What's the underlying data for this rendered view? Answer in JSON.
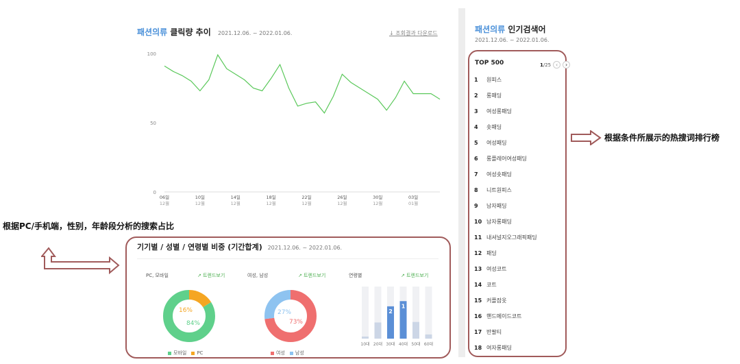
{
  "line_panel": {
    "title_highlight": "패션의류",
    "title_rest": "클릭량 추이",
    "date_range": "2021.12.06. ~ 2022.01.06.",
    "download_label": "↓ 조회결과 다운로드",
    "line_color": "#5ac85a"
  },
  "chart_data": {
    "type": "line",
    "ylim": [
      0,
      100
    ],
    "yticks": [
      "100",
      "50",
      "0"
    ],
    "xticks": [
      {
        "day": "06일",
        "month": "12월"
      },
      {
        "day": "10일",
        "month": "12월"
      },
      {
        "day": "14일",
        "month": "12월"
      },
      {
        "day": "18일",
        "month": "12월"
      },
      {
        "day": "22일",
        "month": "12월"
      },
      {
        "day": "26일",
        "month": "12월"
      },
      {
        "day": "30일",
        "month": "12월"
      },
      {
        "day": "03일",
        "month": "01월"
      }
    ],
    "values": [
      91,
      87,
      84,
      80,
      73,
      81,
      99,
      89,
      85,
      81,
      75,
      73,
      82,
      92,
      75,
      62,
      64,
      65,
      57,
      69,
      85,
      79,
      75,
      71,
      67,
      59,
      68,
      80,
      71,
      71,
      71,
      67
    ]
  },
  "popular": {
    "title_highlight": "패션의류",
    "title_rest": "인기검색어",
    "date_range": "2021.12.06. ~ 2022.01.06.",
    "top_label": "TOP 500",
    "page_current": "1",
    "page_total": "/25",
    "prev_icon": "‹",
    "next_icon": "›",
    "keywords": [
      {
        "rank": "1",
        "kw": "원피스"
      },
      {
        "rank": "2",
        "kw": "롱패딩"
      },
      {
        "rank": "3",
        "kw": "여성롱패딩"
      },
      {
        "rank": "4",
        "kw": "숏패딩"
      },
      {
        "rank": "5",
        "kw": "여성패딩"
      },
      {
        "rank": "6",
        "kw": "롱플레어여성패딩"
      },
      {
        "rank": "7",
        "kw": "여성숏패딩"
      },
      {
        "rank": "8",
        "kw": "니트원피스"
      },
      {
        "rank": "9",
        "kw": "남자패딩"
      },
      {
        "rank": "10",
        "kw": "남자롱패딩"
      },
      {
        "rank": "11",
        "kw": "내셔널지오그래픽패딩"
      },
      {
        "rank": "12",
        "kw": "패딩"
      },
      {
        "rank": "13",
        "kw": "여성코트"
      },
      {
        "rank": "14",
        "kw": "코트"
      },
      {
        "rank": "15",
        "kw": "커플잠옷"
      },
      {
        "rank": "16",
        "kw": "핸드메이드코트"
      },
      {
        "rank": "17",
        "kw": "반팔티"
      },
      {
        "rank": "18",
        "kw": "여자롱패딩"
      }
    ]
  },
  "annotations": {
    "right": "根据条件所展示的热搜词排行榜",
    "left": "根据PC/手机端，性别，年龄段分析的搜索占比",
    "arrow_color": "#a05a5a"
  },
  "distribution": {
    "title": "기기별 / 성별 / 연령별 비중 (기간합계)",
    "date_range": "2021.12.06. ~ 2022.01.06.",
    "trend_label": "↗ 트렌드보기",
    "device": {
      "label": "PC, 모바일",
      "mobile_pct": 84,
      "pc_pct": 16,
      "mobile_text": "84%",
      "pc_text": "16%",
      "mobile_color": "#5fd08b",
      "pc_color": "#f5a623",
      "legend_mobile": "모바일",
      "legend_pc": "PC"
    },
    "gender": {
      "label": "여성, 남성",
      "female_pct": 73,
      "male_pct": 27,
      "female_text": "73%",
      "male_text": "27%",
      "female_color": "#ef6f6f",
      "male_color": "#8ec3f0",
      "legend_female": "여성",
      "legend_male": "남성"
    },
    "age": {
      "label": "연령별",
      "bars": [
        {
          "label": "10대",
          "value": 4,
          "rank": ""
        },
        {
          "label": "20대",
          "value": 31,
          "rank": ""
        },
        {
          "label": "30대",
          "value": 62,
          "rank": "2"
        },
        {
          "label": "40대",
          "value": 72,
          "rank": "1"
        },
        {
          "label": "50대",
          "value": 32,
          "rank": ""
        },
        {
          "label": "60대",
          "value": 8,
          "rank": ""
        }
      ],
      "top_color": "#5b8fd6",
      "other_color": "#ccd6e6",
      "track_color": "#f0f1f4"
    }
  }
}
